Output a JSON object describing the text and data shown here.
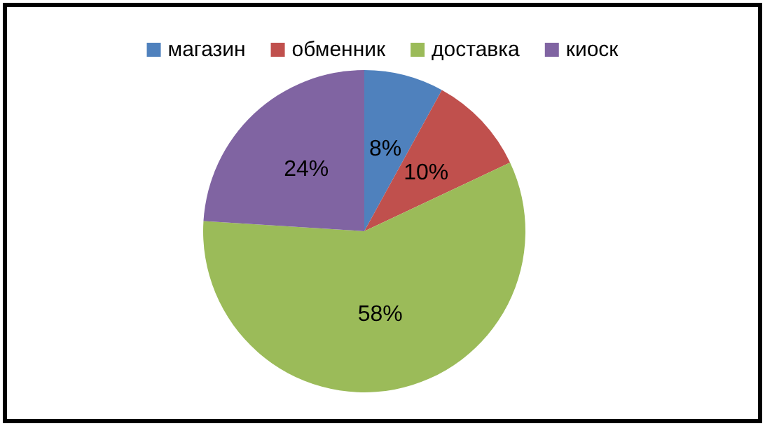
{
  "chart_data": {
    "type": "pie",
    "categories": [
      "магазин",
      "обменник",
      "доставка",
      "киоск"
    ],
    "values": [
      8,
      10,
      58,
      24
    ],
    "colors": [
      "#4f81bd",
      "#c0504d",
      "#9bbb59",
      "#8064a2"
    ],
    "value_labels": [
      "8%",
      "10%",
      "58%",
      "24%"
    ],
    "legend": "top"
  }
}
